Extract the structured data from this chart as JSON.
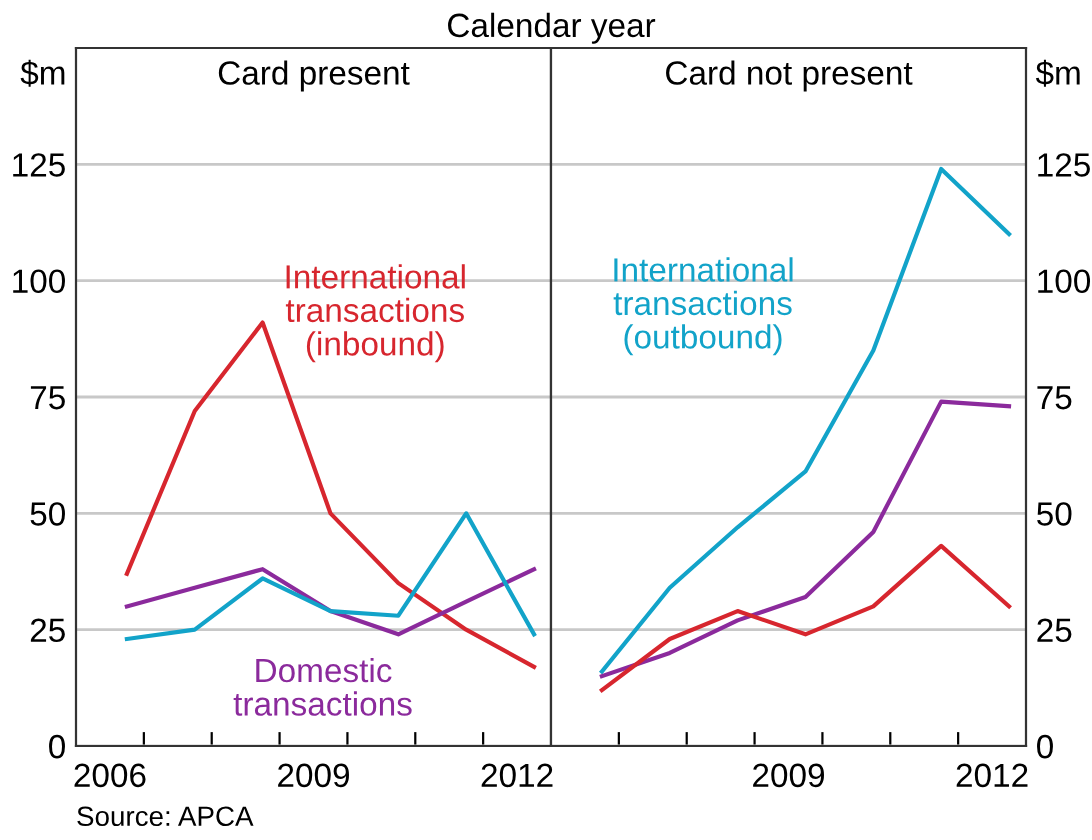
{
  "chart_data": [
    {
      "type": "line",
      "title": "Card present",
      "ylabel": "$m",
      "annotations": [
        "Calendar year",
        "Source: APCA"
      ],
      "x": [
        2006.75,
        2007.75,
        2008.75,
        2009.75,
        2010.75,
        2011.75,
        2012.75
      ],
      "series": [
        {
          "name": "International transactions (inbound)",
          "color": "#d7262e",
          "values": [
            37,
            72,
            91,
            50,
            35,
            25,
            17
          ]
        },
        {
          "name": "Domestic transactions",
          "color": "#8b2a9c",
          "values": [
            30,
            34,
            38,
            29,
            24,
            31,
            38
          ]
        },
        {
          "color": "#12a3c9",
          "values": [
            23,
            25,
            36,
            29,
            28,
            50,
            24
          ]
        }
      ],
      "xlim": [
        2006,
        2013
      ],
      "xticks": [
        {
          "value": 2007,
          "label": null
        },
        {
          "value": 2008,
          "label": null
        },
        {
          "value": 2009,
          "label": null
        },
        {
          "value": 2010,
          "label": null
        },
        {
          "value": 2011,
          "label": null
        },
        {
          "value": 2012,
          "label": null
        },
        {
          "value": 2006.5,
          "label": "2006"
        },
        {
          "value": 2009.5,
          "label": "2009"
        },
        {
          "value": 2012.5,
          "label": "2012"
        }
      ],
      "ylim": [
        0,
        150
      ],
      "yticks": [
        0,
        25,
        50,
        75,
        100,
        125
      ],
      "grid": "y",
      "legend": false
    },
    {
      "type": "line",
      "title": "Card not present",
      "ylabel": "$m",
      "x": [
        2006.75,
        2007.75,
        2008.75,
        2009.75,
        2010.75,
        2011.75,
        2012.75
      ],
      "series": [
        {
          "name": "International transactions (outbound)",
          "color": "#12a3c9",
          "values": [
            16,
            34,
            47,
            59,
            85,
            124,
            110
          ]
        },
        {
          "color": "#8b2a9c",
          "values": [
            15,
            20,
            27,
            32,
            46,
            74,
            73
          ]
        },
        {
          "color": "#d7262e",
          "values": [
            12,
            23,
            29,
            24,
            30,
            43,
            30
          ]
        }
      ],
      "xlim": [
        2006,
        2013
      ],
      "xticks": [
        {
          "value": 2007,
          "label": null
        },
        {
          "value": 2008,
          "label": null
        },
        {
          "value": 2009,
          "label": null
        },
        {
          "value": 2010,
          "label": null
        },
        {
          "value": 2011,
          "label": null
        },
        {
          "value": 2012,
          "label": null
        },
        {
          "value": 2009.5,
          "label": "2009"
        },
        {
          "value": 2012.5,
          "label": "2012"
        }
      ],
      "ylim": [
        0,
        150
      ],
      "yticks": [
        0,
        25,
        50,
        75,
        100,
        125
      ],
      "grid": "y",
      "legend": false
    }
  ]
}
